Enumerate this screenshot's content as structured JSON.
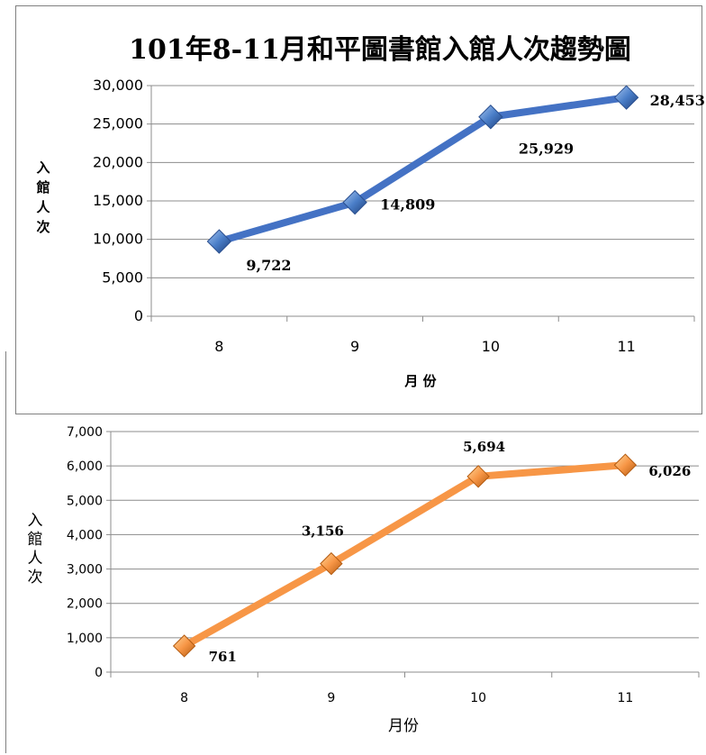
{
  "chart_data": [
    {
      "type": "line",
      "title": "101年8-11月和平圖書館入館人次趨勢圖",
      "categories": [
        "8",
        "9",
        "10",
        "11"
      ],
      "series": [
        {
          "values": [
            9722,
            14809,
            25929,
            28453
          ],
          "color": "#4472C4"
        }
      ],
      "data_labels": [
        "9,722",
        "14,809",
        "25,929",
        "28,453"
      ],
      "xlabel": "月 份",
      "ylabel": [
        "入",
        "館",
        "人",
        "次"
      ],
      "ylim": [
        0,
        30000
      ],
      "yticks": [
        0,
        5000,
        10000,
        15000,
        20000,
        25000,
        30000
      ],
      "ytick_labels": [
        "0",
        "5,000",
        "10,000",
        "15,000",
        "20,000",
        "25,000",
        "30,000"
      ],
      "grid": true,
      "marker": "diamond"
    },
    {
      "type": "line",
      "title": "",
      "categories": [
        "8",
        "9",
        "10",
        "11"
      ],
      "series": [
        {
          "values": [
            761,
            3156,
            5694,
            6026
          ],
          "color": "#F79646"
        }
      ],
      "data_labels": [
        "761",
        "3,156",
        "5,694",
        "6,026"
      ],
      "xlabel": "月份",
      "ylabel": [
        "入",
        "館",
        "人",
        "次"
      ],
      "ylim": [
        0,
        7000
      ],
      "yticks": [
        0,
        1000,
        2000,
        3000,
        4000,
        5000,
        6000,
        7000
      ],
      "ytick_labels": [
        "0",
        "1,000",
        "2,000",
        "3,000",
        "4,000",
        "5,000",
        "6,000",
        "7,000"
      ],
      "grid": true,
      "marker": "diamond"
    }
  ]
}
